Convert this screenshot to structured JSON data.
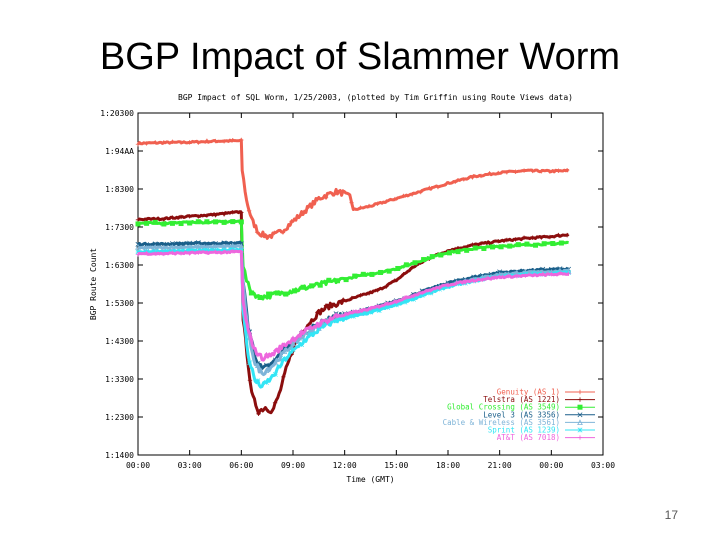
{
  "slide": {
    "title": "BGP Impact of Slammer Worm",
    "page_number": "17"
  },
  "chart_data": {
    "type": "line",
    "title": "BGP Impact of SQL Worm, 1/25/2003, (plotted by Tim Griffin using Route Views data)",
    "xlabel": "Time (GMT)",
    "ylabel": "BGP Route Count",
    "x_ticks": [
      "00:00",
      "03:00",
      "06:00",
      "09:00",
      "12:00",
      "15:00",
      "18:00",
      "21:00",
      "00:00",
      "03:00"
    ],
    "x_range_hours": [
      0,
      27
    ],
    "y_ticks": [
      114000,
      124000,
      134000,
      144000,
      154000,
      164000,
      174000,
      184000,
      194000,
      204000
    ],
    "y_tick_labels": [
      "1:1400",
      "1:2300",
      "1:3300",
      "1:4300",
      "1:5300",
      "1:6300",
      "1:7300",
      "1:8300",
      "1:94AA",
      "1:20300"
    ],
    "ylim": [
      114000,
      204000
    ],
    "grid": false,
    "legend_position": "bottom-right",
    "series": [
      {
        "name": "Genuity (AS 1)",
        "color": "#f06050",
        "marker": "+",
        "x_hours": [
          0,
          1.5,
          3,
          4.5,
          6.0,
          6.05,
          6.3,
          6.6,
          7,
          7.5,
          8,
          8.5,
          9,
          9.5,
          10,
          10.5,
          11,
          11.5,
          12.3,
          12.5,
          13.5,
          15,
          16.5,
          18,
          19.5,
          21,
          22.5,
          24,
          25
        ],
        "values": [
          196000,
          196200,
          196300,
          196600,
          196700,
          189000,
          181000,
          176000,
          172500,
          171500,
          172000,
          173500,
          175500,
          177500,
          179500,
          181500,
          182500,
          183300,
          182500,
          178500,
          179500,
          181500,
          183500,
          185500,
          187300,
          188300,
          188800,
          188700,
          188800
        ]
      },
      {
        "name": "Telstra (AS 1221)",
        "color": "#8b0d0d",
        "marker": "+",
        "x_hours": [
          0,
          1.5,
          3,
          4.5,
          6.0,
          6.1,
          6.4,
          6.6,
          7.0,
          7.4,
          7.8,
          8.2,
          8.6,
          9,
          9.5,
          10,
          10.5,
          11,
          12,
          13,
          14,
          15,
          16,
          17,
          18,
          19.5,
          21,
          22.5,
          24,
          25
        ],
        "values": [
          176000,
          176200,
          176800,
          177300,
          178000,
          150000,
          138000,
          130000,
          125500,
          126500,
          125500,
          130000,
          136500,
          142000,
          146500,
          149000,
          151500,
          153000,
          154500,
          156000,
          157500,
          160000,
          163500,
          166000,
          167800,
          169300,
          170300,
          171000,
          171500,
          172000
        ]
      },
      {
        "name": "Global Crossing (AS 3549)",
        "color": "#33ee33",
        "marker": "square",
        "x_hours": [
          0,
          1.5,
          3,
          4.5,
          6.0,
          6.1,
          6.3,
          6.5,
          7,
          7.5,
          8,
          9,
          10,
          11,
          12,
          13,
          14,
          15,
          16,
          17,
          18,
          19.5,
          21,
          22.5,
          24,
          25
        ],
        "values": [
          175000,
          175000,
          175200,
          175300,
          175500,
          164000,
          160000,
          157500,
          155500,
          155800,
          156300,
          157300,
          158300,
          159300,
          160300,
          161300,
          162000,
          163000,
          164500,
          166000,
          167300,
          168300,
          169000,
          169300,
          169600,
          169900
        ]
      },
      {
        "name": "Level 3 (AS 3356)",
        "color": "#1a5f8a",
        "marker": "x",
        "x_hours": [
          0,
          1.5,
          3,
          4.5,
          6.0,
          6.1,
          6.4,
          6.8,
          7.2,
          7.8,
          8.5,
          9.5,
          10.5,
          11.5,
          12.5,
          13.5,
          15,
          16.5,
          18,
          19.5,
          21,
          22.5,
          24,
          25
        ],
        "values": [
          169500,
          169500,
          169700,
          169700,
          169800,
          160000,
          148000,
          140000,
          136500,
          138000,
          142000,
          145500,
          148500,
          150500,
          151500,
          152500,
          154500,
          157000,
          159300,
          160800,
          162000,
          162500,
          162800,
          162900
        ]
      },
      {
        "name": "Cable & Wireless (AS 3561)",
        "color": "#7fb4d8",
        "marker": "triangle",
        "x_hours": [
          0,
          1.5,
          3,
          4.5,
          6.0,
          6.1,
          6.4,
          6.8,
          7.2,
          7.8,
          8.5,
          9.5,
          10.5,
          11.5,
          12.5,
          13.5,
          15,
          16.5,
          18,
          19.5,
          21,
          22.5,
          24,
          25
        ],
        "values": [
          168500,
          168600,
          168700,
          168800,
          169000,
          159000,
          146000,
          138000,
          135500,
          137500,
          141000,
          145000,
          148000,
          150000,
          151000,
          152000,
          154000,
          156500,
          158800,
          160300,
          161500,
          162000,
          162300,
          162400
        ]
      },
      {
        "name": "Sprint (AS 1239)",
        "color": "#33e5f5",
        "marker": "star",
        "x_hours": [
          0,
          1.5,
          3,
          4.5,
          6.0,
          6.1,
          6.4,
          6.8,
          7.2,
          7.8,
          8.5,
          9.5,
          10.5,
          11.5,
          12.5,
          13.5,
          15,
          16.5,
          18,
          19.5,
          21,
          22.5,
          24,
          25
        ],
        "values": [
          167500,
          167600,
          167700,
          167900,
          168000,
          152000,
          140000,
          133500,
          132000,
          134500,
          139000,
          143500,
          147000,
          149500,
          150500,
          151500,
          153500,
          156000,
          158300,
          159800,
          161000,
          161500,
          161800,
          162000
        ]
      },
      {
        "name": "AT&T (AS 7018)",
        "color": "#ee66dd",
        "marker": "+",
        "x_hours": [
          0,
          1.5,
          3,
          4.5,
          6.0,
          6.1,
          6.4,
          6.8,
          7.2,
          7.8,
          8.5,
          9.5,
          10.5,
          11.5,
          12.5,
          13.5,
          15,
          16.5,
          18,
          19.5,
          21,
          22.5,
          24,
          25
        ],
        "values": [
          167000,
          167000,
          167200,
          167300,
          167500,
          154000,
          146500,
          141500,
          139500,
          140500,
          143000,
          146000,
          148500,
          150500,
          151500,
          152500,
          154500,
          156800,
          158800,
          160000,
          160800,
          161200,
          161500,
          161700
        ]
      }
    ]
  }
}
